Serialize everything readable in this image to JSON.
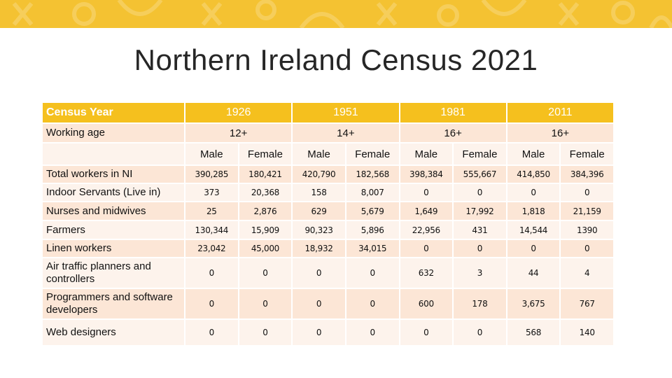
{
  "title": "Northern Ireland Census 2021",
  "colors": {
    "band": "#f4c232",
    "header": "#f5c01e",
    "row_odd": "#fce6d6",
    "row_even": "#fdf3ec"
  },
  "table": {
    "census_year_label": "Census Year",
    "working_age_label": "Working age",
    "years": [
      "1926",
      "1951",
      "1981",
      "2011"
    ],
    "working_ages": [
      "12+",
      "14+",
      "16+",
      "16+"
    ],
    "subheaders": [
      "Male",
      "Female",
      "Male",
      "Female",
      "Male",
      "Female",
      "Male",
      "Female"
    ],
    "rows": [
      {
        "label": "Total workers in NI",
        "values": [
          "390,285",
          "180,421",
          "420,790",
          "182,568",
          "398,384",
          "555,667",
          "414,850",
          "384,396"
        ]
      },
      {
        "label": "Indoor Servants (Live in)",
        "values": [
          "373",
          "20,368",
          "158",
          "8,007",
          "0",
          "0",
          "0",
          "0"
        ]
      },
      {
        "label": "Nurses and midwives",
        "values": [
          "25",
          "2,876",
          "629",
          "5,679",
          "1,649",
          "17,992",
          "1,818",
          "21,159"
        ]
      },
      {
        "label": "Farmers",
        "values": [
          "130,344",
          "15,909",
          "90,323",
          "5,896",
          "22,956",
          "431",
          "14,544",
          "1390"
        ]
      },
      {
        "label": "Linen workers",
        "values": [
          "23,042",
          "45,000",
          "18,932",
          "34,015",
          "0",
          "0",
          "0",
          "0"
        ]
      },
      {
        "label": "Air traffic planners and controllers",
        "values": [
          "0",
          "0",
          "0",
          "0",
          "632",
          "3",
          "44",
          "4"
        ]
      },
      {
        "label": "Programmers and software developers",
        "values": [
          "0",
          "0",
          "0",
          "0",
          "600",
          "178",
          "3,675",
          "767"
        ]
      },
      {
        "label": "Web designers",
        "values": [
          "0",
          "0",
          "0",
          "0",
          "0",
          "0",
          "568",
          "140"
        ]
      }
    ]
  }
}
